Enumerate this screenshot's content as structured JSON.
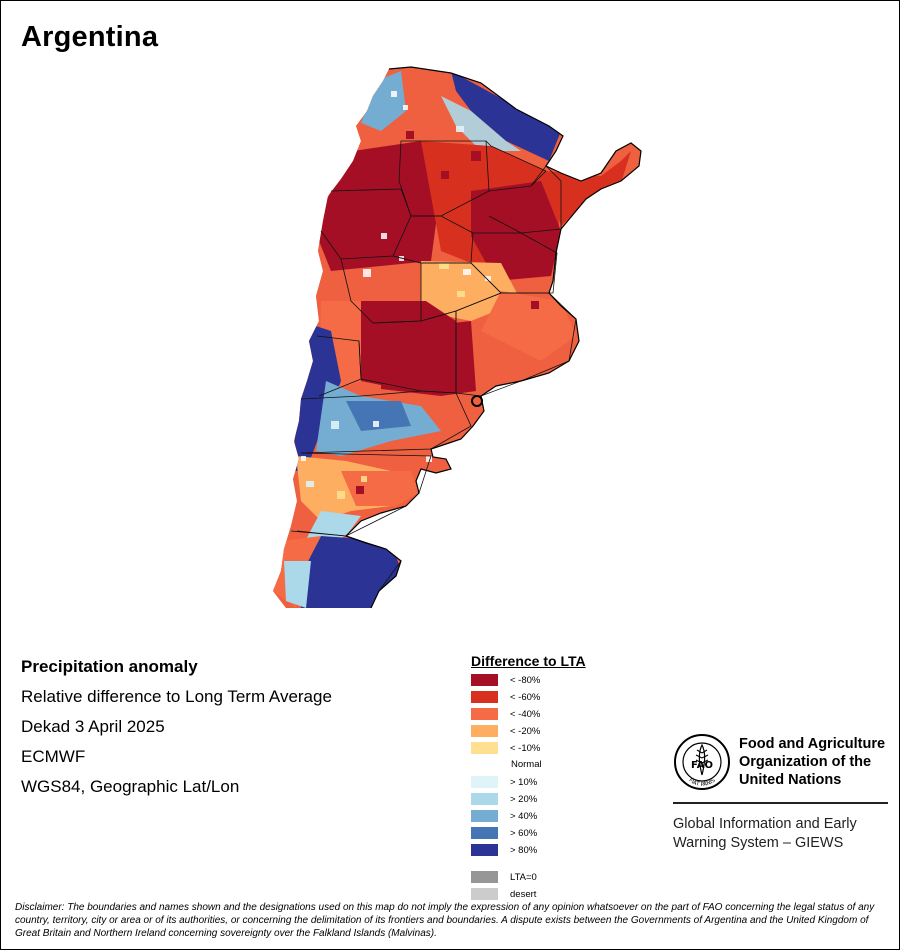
{
  "map_title": "Argentina",
  "info": {
    "title": "Precipitation anomaly",
    "subtitle": "Relative difference to Long Term Average",
    "period": "Dekad 3 April 2025",
    "source": "ECMWF",
    "projection": "WGS84, Geographic Lat/Lon"
  },
  "legend": {
    "title": "Difference to LTA",
    "dry": [
      {
        "label": "< -80%",
        "color": "#a50f26"
      },
      {
        "label": "< -60%",
        "color": "#d8301f"
      },
      {
        "label": "< -40%",
        "color": "#f46b45"
      },
      {
        "label": "< -20%",
        "color": "#fdae61"
      },
      {
        "label": "< -10%",
        "color": "#fee090"
      }
    ],
    "normal": "Normal",
    "wet": [
      {
        "label": "> 10%",
        "color": "#e0f3f8"
      },
      {
        "label": "> 20%",
        "color": "#abd9e9"
      },
      {
        "label": "> 40%",
        "color": "#74add1"
      },
      {
        "label": "> 60%",
        "color": "#4575b4"
      },
      {
        "label": "> 80%",
        "color": "#2b3494"
      }
    ],
    "other": [
      {
        "label": "LTA=0",
        "color": "#969696"
      },
      {
        "label": "desert",
        "color": "#cccccc"
      }
    ]
  },
  "org": {
    "name": "Food and Agriculture Organization of the United Nations",
    "logo_acronym": "FAO",
    "logo_motto": "FIAT PANIS",
    "system": "Global Information and Early Warning System – GIEWS"
  },
  "disclaimer": "Disclaimer: The boundaries and names shown and the designations used on this map do not imply the expression of any opinion whatsoever on the part of FAO concerning the legal status of any country, territory, city or area or of its authorities, or concerning the delimitation of its frontiers and boundaries. A dispute exists between the Governments of Argentina and the United Kingdom of Great Britain and Northern Ireland concerning sovereignty over the Falkland Islands (Malvinas)."
}
